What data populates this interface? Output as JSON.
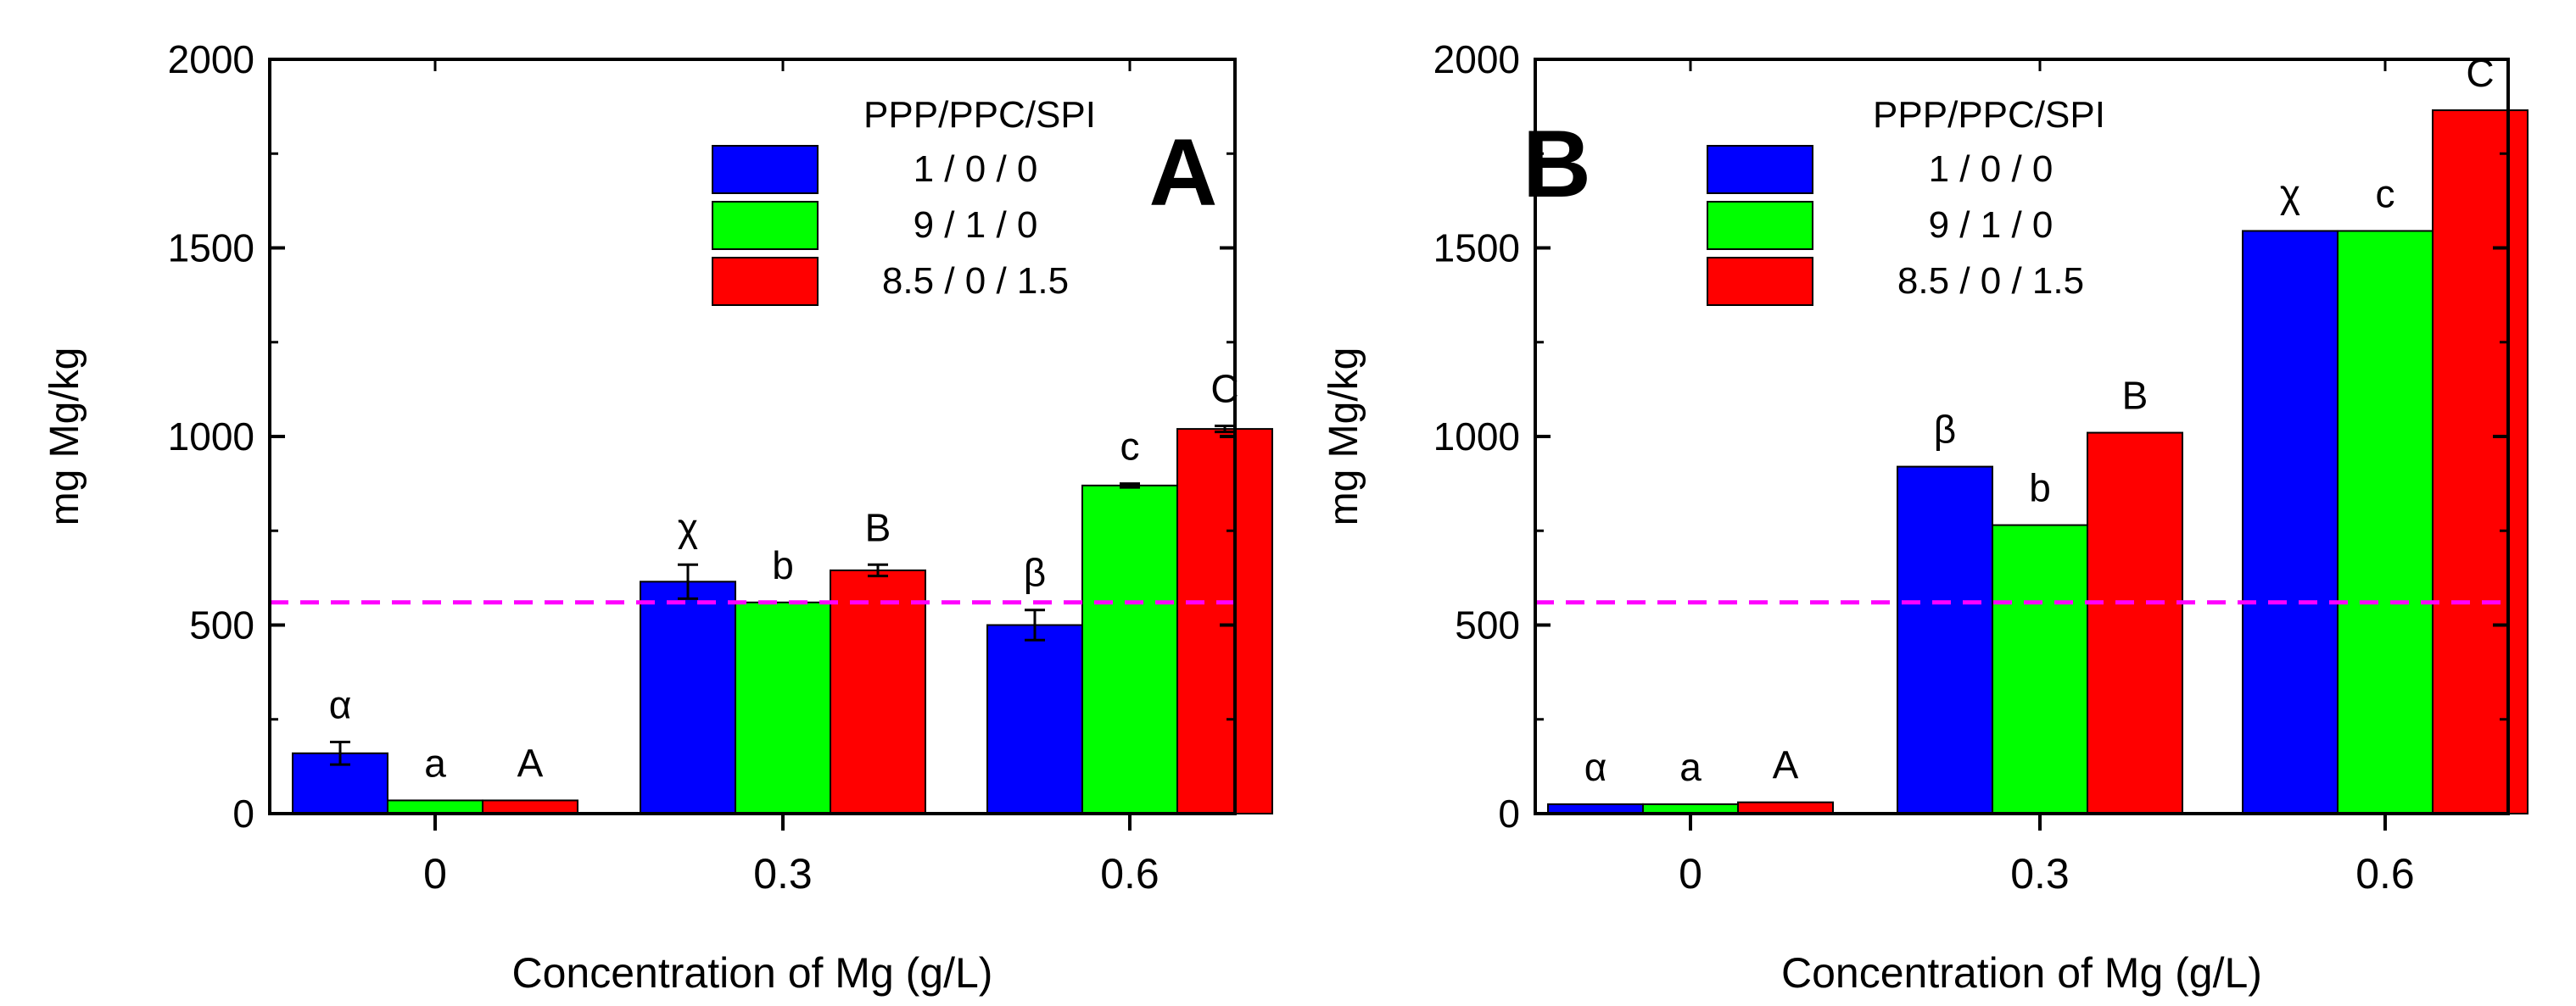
{
  "figure": {
    "reference_value": 560,
    "reference_color": "#ff00ff"
  },
  "colors": {
    "series": [
      "#0000ff",
      "#00ff00",
      "#ff0000"
    ],
    "axis": "#000000"
  },
  "chart_data": [
    {
      "type": "bar",
      "panel_label": "A",
      "title": "",
      "xlabel": "Concentration of Mg (g/L)",
      "ylabel": "mg Mg/kg",
      "ylim": [
        0,
        2000
      ],
      "yticks": [
        "0",
        "500",
        "1000",
        "1500",
        "2000"
      ],
      "categories": [
        "0",
        "0.3",
        "0.6"
      ],
      "legend_title": "PPP/PPC/SPI",
      "legend_position": "top-right",
      "series": [
        {
          "name": "1 / 0 / 0",
          "values": [
            160,
            615,
            500
          ],
          "errors": [
            30,
            45,
            40
          ],
          "labels": [
            "α",
            "χ",
            "β"
          ]
        },
        {
          "name": "9 / 1 / 0",
          "values": [
            35,
            560,
            870
          ],
          "errors": [
            0,
            0,
            5
          ],
          "labels": [
            "a",
            "b",
            "c"
          ]
        },
        {
          "name": "8.5 / 0 / 1.5",
          "values": [
            35,
            645,
            1020
          ],
          "errors": [
            0,
            15,
            8
          ],
          "labels": [
            "A",
            "B",
            "C"
          ]
        }
      ]
    },
    {
      "type": "bar",
      "panel_label": "B",
      "title": "",
      "xlabel": "Concentration of Mg (g/L)",
      "ylabel": "mg Mg/kg",
      "ylim": [
        0,
        2000
      ],
      "yticks": [
        "0",
        "500",
        "1000",
        "1500",
        "2000"
      ],
      "categories": [
        "0",
        "0.3",
        "0.6"
      ],
      "legend_title": "PPP/PPC/SPI",
      "legend_position": "top-left",
      "series": [
        {
          "name": "1 / 0 / 0",
          "values": [
            25,
            920,
            1545
          ],
          "errors": [
            0,
            0,
            0
          ],
          "labels": [
            "α",
            "β",
            "χ"
          ]
        },
        {
          "name": "9 / 1 / 0",
          "values": [
            25,
            765,
            1545
          ],
          "errors": [
            0,
            0,
            0
          ],
          "labels": [
            "a",
            "b",
            "c"
          ]
        },
        {
          "name": "8.5 / 0 / 1.5",
          "values": [
            30,
            1010,
            1865
          ],
          "errors": [
            0,
            0,
            0
          ],
          "labels": [
            "A",
            "B",
            "C"
          ]
        }
      ]
    }
  ]
}
